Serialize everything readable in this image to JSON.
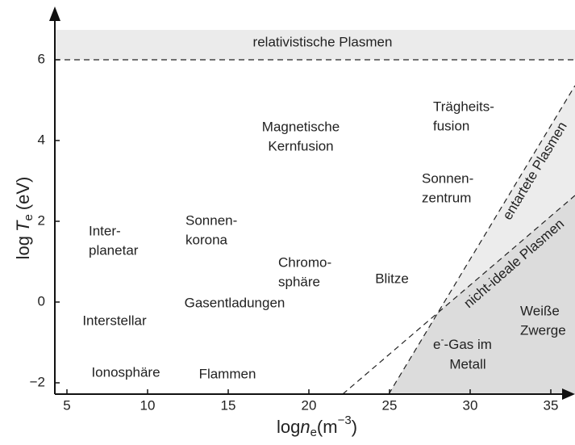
{
  "axes": {
    "xticks": [
      5,
      10,
      15,
      20,
      25,
      30,
      35
    ],
    "yticks": [
      {
        "value": -2,
        "label": "−2"
      },
      0,
      2,
      4,
      6
    ],
    "x_label": {
      "prefix": "log",
      "var": "n",
      "sub": "e",
      "unit": "(m",
      "sup": "−3",
      "close": ")"
    },
    "y_label": {
      "prefix": "log",
      "var": "T",
      "sub": "e",
      "unit": "(eV)"
    }
  },
  "band": "relativistische Plasmen",
  "boundaries": [
    "entartete Plasmen",
    "nicht-ideale Plasmen"
  ],
  "regions": [
    [
      "Trägheits-",
      "fusion"
    ],
    [
      "Magnetische",
      "Kernfusion"
    ],
    [
      "Sonnen-",
      "zentrum"
    ],
    [
      "Sonnen-",
      "korona"
    ],
    [
      "Inter-",
      "planetar"
    ],
    [
      "Chromo-",
      "sphäre"
    ],
    [
      "Blitze"
    ],
    [
      "Gasentladungen"
    ],
    [
      "Interstellar"
    ],
    [
      "Weiße",
      "Zwerge"
    ],
    [
      "Ionosphäre"
    ],
    [
      "Flammen"
    ]
  ],
  "electron_gas": {
    "base": "e",
    "sup": "-",
    "rest": "-Gas im",
    "line2": "Metall"
  }
}
